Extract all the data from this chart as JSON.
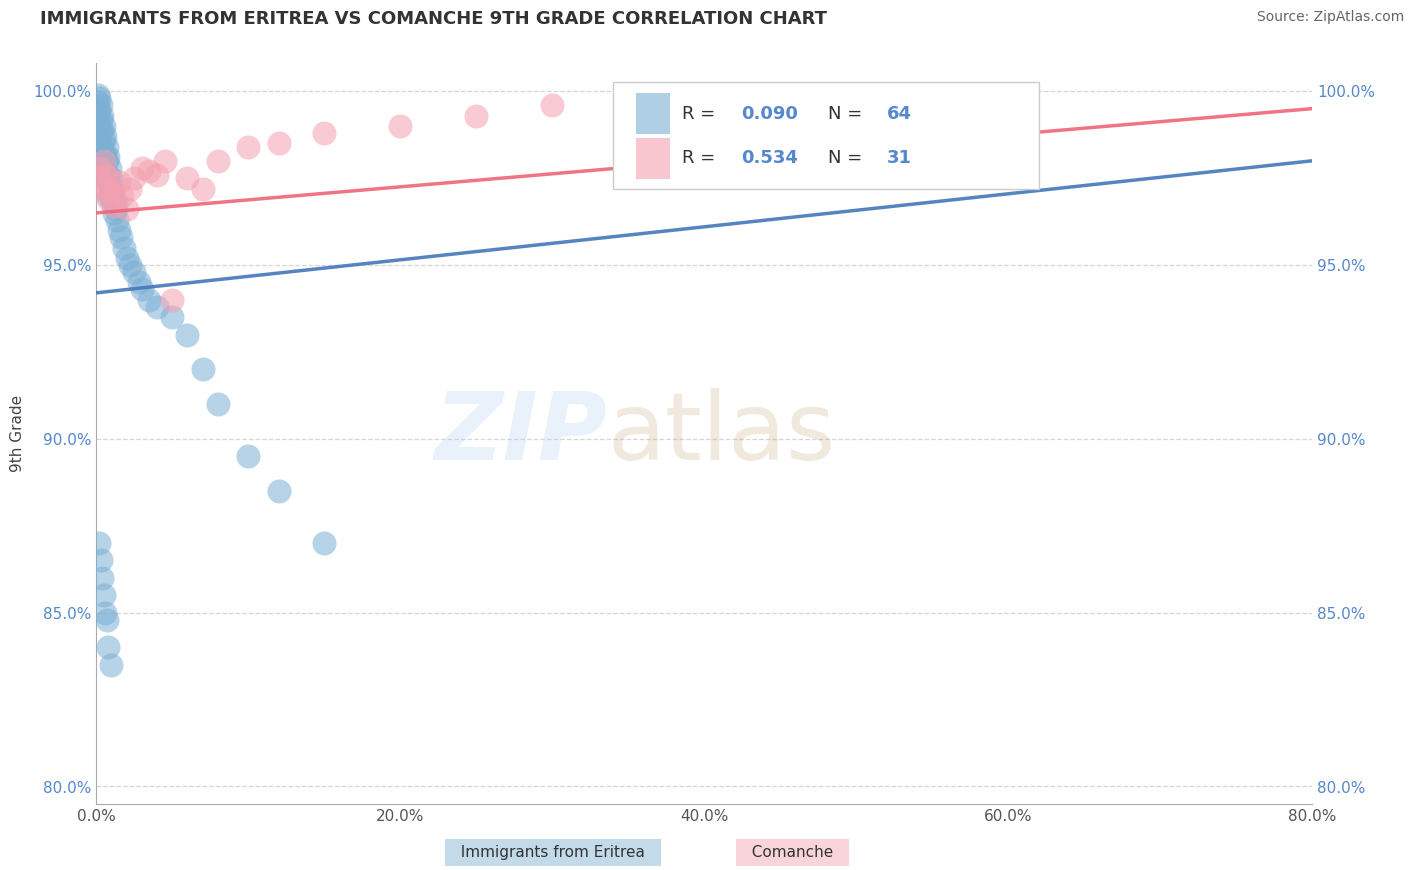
{
  "title": "IMMIGRANTS FROM ERITREA VS COMANCHE 9TH GRADE CORRELATION CHART",
  "source": "Source: ZipAtlas.com",
  "xlabel_legend1": "Immigrants from Eritrea",
  "xlabel_legend2": "Comanche",
  "ylabel": "9th Grade",
  "r1": 0.09,
  "n1": 64,
  "r2": 0.534,
  "n2": 31,
  "xmin": 0.0,
  "xmax": 0.8,
  "ymin": 0.795,
  "ymax": 1.008,
  "yticks": [
    0.8,
    0.85,
    0.9,
    0.95,
    1.0
  ],
  "ytick_labels": [
    "80.0%",
    "85.0%",
    "90.0%",
    "95.0%",
    "100.0%"
  ],
  "xticks": [
    0.0,
    0.2,
    0.4,
    0.6,
    0.8
  ],
  "xtick_labels": [
    "0.0%",
    "20.0%",
    "40.0%",
    "60.0%",
    "80.0%"
  ],
  "blue_color": "#7BAFD4",
  "pink_color": "#F4A0B0",
  "blue_line_color": "#4477BB",
  "pink_line_color": "#EE6677",
  "background_color": "#FFFFFF",
  "grid_color": "#CCCCCC",
  "watermark_zip": "ZIP",
  "watermark_atlas": "atlas",
  "blue_x": [
    0.001,
    0.001,
    0.001,
    0.002,
    0.002,
    0.002,
    0.002,
    0.003,
    0.003,
    0.003,
    0.003,
    0.003,
    0.004,
    0.004,
    0.004,
    0.004,
    0.005,
    0.005,
    0.005,
    0.005,
    0.006,
    0.006,
    0.006,
    0.007,
    0.007,
    0.007,
    0.008,
    0.008,
    0.008,
    0.009,
    0.009,
    0.01,
    0.01,
    0.011,
    0.011,
    0.012,
    0.012,
    0.013,
    0.014,
    0.015,
    0.016,
    0.018,
    0.02,
    0.022,
    0.025,
    0.028,
    0.03,
    0.035,
    0.04,
    0.05,
    0.06,
    0.07,
    0.08,
    0.1,
    0.12,
    0.15,
    0.002,
    0.003,
    0.004,
    0.005,
    0.006,
    0.007,
    0.008,
    0.01
  ],
  "blue_y": [
    0.999,
    0.997,
    0.993,
    0.998,
    0.995,
    0.99,
    0.985,
    0.996,
    0.992,
    0.988,
    0.983,
    0.978,
    0.993,
    0.989,
    0.984,
    0.979,
    0.99,
    0.986,
    0.981,
    0.975,
    0.987,
    0.982,
    0.977,
    0.984,
    0.98,
    0.975,
    0.981,
    0.976,
    0.97,
    0.978,
    0.973,
    0.975,
    0.97,
    0.972,
    0.968,
    0.969,
    0.965,
    0.966,
    0.963,
    0.96,
    0.958,
    0.955,
    0.952,
    0.95,
    0.948,
    0.945,
    0.943,
    0.94,
    0.938,
    0.935,
    0.93,
    0.92,
    0.91,
    0.895,
    0.885,
    0.87,
    0.87,
    0.865,
    0.86,
    0.855,
    0.85,
    0.848,
    0.84,
    0.835
  ],
  "pink_x": [
    0.001,
    0.002,
    0.003,
    0.005,
    0.006,
    0.007,
    0.008,
    0.009,
    0.01,
    0.011,
    0.013,
    0.015,
    0.017,
    0.02,
    0.022,
    0.025,
    0.03,
    0.035,
    0.04,
    0.045,
    0.05,
    0.06,
    0.07,
    0.08,
    0.1,
    0.12,
    0.15,
    0.2,
    0.25,
    0.3,
    0.4
  ],
  "pink_y": [
    0.975,
    0.978,
    0.972,
    0.98,
    0.976,
    0.972,
    0.969,
    0.975,
    0.971,
    0.967,
    0.968,
    0.974,
    0.97,
    0.966,
    0.972,
    0.975,
    0.978,
    0.977,
    0.976,
    0.98,
    0.94,
    0.975,
    0.972,
    0.98,
    0.984,
    0.985,
    0.988,
    0.99,
    0.993,
    0.996,
    0.999
  ],
  "blue_line_x0": 0.0,
  "blue_line_y0": 0.942,
  "blue_line_x1": 0.8,
  "blue_line_y1": 0.98,
  "pink_line_x0": 0.0,
  "pink_line_y0": 0.965,
  "pink_line_x1": 0.8,
  "pink_line_y1": 0.995
}
